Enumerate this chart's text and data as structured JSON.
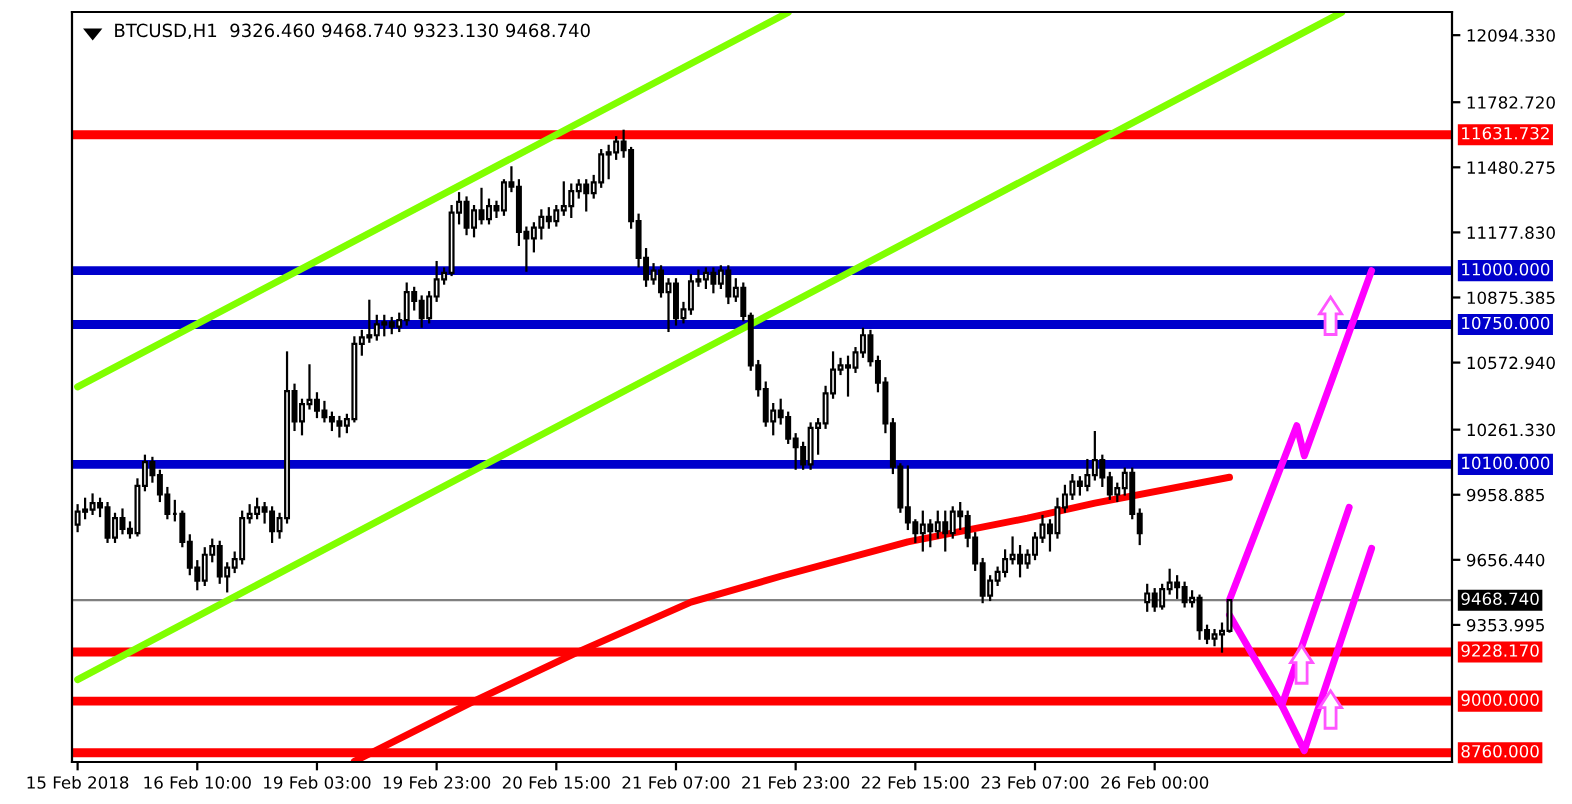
{
  "chart_data": {
    "type": "candlestick",
    "title": "BTCUSD,H1  9326.460 9468.740 9323.130 9468.740",
    "categories": [
      "15 Feb 2018",
      null,
      null,
      null,
      null,
      null,
      null,
      null,
      null,
      null,
      null,
      null,
      null,
      null,
      null,
      null,
      "16 Feb 10:00",
      null,
      null,
      null,
      null,
      null,
      null,
      null,
      null,
      null,
      null,
      null,
      null,
      null,
      null,
      null,
      "19 Feb 03:00",
      null,
      null,
      null,
      null,
      null,
      null,
      null,
      null,
      null,
      null,
      null,
      null,
      null,
      null,
      null,
      "19 Feb 23:00",
      null,
      null,
      null,
      null,
      null,
      null,
      null,
      null,
      null,
      null,
      null,
      null,
      null,
      null,
      null,
      "20 Feb 15:00",
      null,
      null,
      null,
      null,
      null,
      null,
      null,
      null,
      null,
      null,
      null,
      null,
      null,
      null,
      null,
      "21 Feb 07:00",
      null,
      null,
      null,
      null,
      null,
      null,
      null,
      null,
      null,
      null,
      null,
      null,
      null,
      null,
      null,
      "21 Feb 23:00",
      null,
      null,
      null,
      null,
      null,
      null,
      null,
      null,
      null,
      null,
      null,
      null,
      null,
      null,
      null,
      "22 Feb 15:00",
      null,
      null,
      null,
      null,
      null,
      null,
      null,
      null,
      null,
      null,
      null,
      null,
      null,
      null,
      null,
      "23 Feb 07:00",
      null,
      null,
      null,
      null,
      null,
      null,
      null,
      null,
      null,
      null,
      null,
      null,
      null,
      null,
      null,
      "26 Feb 00:00",
      null,
      null,
      null,
      null,
      null,
      null,
      null,
      null,
      null,
      null,
      null,
      null,
      null,
      null,
      null,
      null,
      null,
      null,
      null,
      null,
      null,
      null,
      null,
      null,
      null,
      null,
      null,
      null,
      null,
      null,
      null,
      null,
      null,
      null,
      null,
      null,
      null,
      null,
      null
    ],
    "ohlc": [
      [
        9820,
        9910,
        9790,
        9880
      ],
      [
        9880,
        9940,
        9850,
        9890
      ],
      [
        9890,
        9960,
        9870,
        9920
      ],
      [
        9920,
        9940,
        9860,
        9900
      ],
      [
        9900,
        9920,
        9740,
        9760
      ],
      [
        9760,
        9870,
        9740,
        9850
      ],
      [
        9850,
        9890,
        9780,
        9800
      ],
      [
        9800,
        9830,
        9760,
        9780
      ],
      [
        9780,
        10030,
        9770,
        10000
      ],
      [
        10000,
        10140,
        9980,
        10110
      ],
      [
        10110,
        10130,
        10020,
        10050
      ],
      [
        10050,
        10070,
        9930,
        9960
      ],
      [
        9960,
        9990,
        9850,
        9870
      ],
      [
        9870,
        9930,
        9840,
        9870
      ],
      [
        9870,
        9880,
        9720,
        9740
      ],
      [
        9740,
        9770,
        9590,
        9620
      ],
      [
        9620,
        9650,
        9520,
        9560
      ],
      [
        9560,
        9710,
        9540,
        9680
      ],
      [
        9680,
        9750,
        9650,
        9720
      ],
      [
        9720,
        9740,
        9550,
        9580
      ],
      [
        9580,
        9640,
        9510,
        9620
      ],
      [
        9620,
        9690,
        9600,
        9660
      ],
      [
        9660,
        9880,
        9640,
        9850
      ],
      [
        9850,
        9910,
        9830,
        9870
      ],
      [
        9870,
        9940,
        9850,
        9900
      ],
      [
        9900,
        9920,
        9830,
        9880
      ],
      [
        9880,
        9900,
        9740,
        9790
      ],
      [
        9790,
        9870,
        9760,
        9850
      ],
      [
        9850,
        10620,
        9830,
        10440
      ],
      [
        10440,
        10470,
        10260,
        10300
      ],
      [
        10300,
        10400,
        10240,
        10380
      ],
      [
        10380,
        10560,
        10360,
        10400
      ],
      [
        10400,
        10430,
        10320,
        10350
      ],
      [
        10350,
        10390,
        10300,
        10320
      ],
      [
        10320,
        10340,
        10260,
        10300
      ],
      [
        10300,
        10320,
        10230,
        10280
      ],
      [
        10280,
        10330,
        10250,
        10310
      ],
      [
        10310,
        10690,
        10300,
        10660
      ],
      [
        10660,
        10720,
        10610,
        10690
      ],
      [
        10690,
        10860,
        10670,
        10700
      ],
      [
        10700,
        10790,
        10680,
        10750
      ],
      [
        10750,
        10790,
        10700,
        10760
      ],
      [
        10760,
        10780,
        10710,
        10740
      ],
      [
        10740,
        10800,
        10720,
        10770
      ],
      [
        10770,
        10940,
        10750,
        10900
      ],
      [
        10900,
        10920,
        10820,
        10860
      ],
      [
        10860,
        10880,
        10740,
        10780
      ],
      [
        10780,
        10900,
        10760,
        10880
      ],
      [
        10880,
        11040,
        10860,
        10960
      ],
      [
        10960,
        11010,
        10940,
        10990
      ],
      [
        10990,
        11300,
        10980,
        11270
      ],
      [
        11270,
        11360,
        11220,
        11320
      ],
      [
        11320,
        11340,
        11170,
        11200
      ],
      [
        11200,
        11300,
        11160,
        11280
      ],
      [
        11280,
        11380,
        11220,
        11240
      ],
      [
        11240,
        11330,
        11220,
        11300
      ],
      [
        11300,
        11320,
        11250,
        11280
      ],
      [
        11280,
        11420,
        11260,
        11410
      ],
      [
        11410,
        11480,
        11370,
        11390
      ],
      [
        11390,
        11420,
        11120,
        11180
      ],
      [
        11180,
        11200,
        11000,
        11150
      ],
      [
        11150,
        11220,
        11090,
        11200
      ],
      [
        11200,
        11280,
        11150,
        11250
      ],
      [
        11250,
        11290,
        11200,
        11230
      ],
      [
        11230,
        11300,
        11210,
        11280
      ],
      [
        11280,
        11410,
        11260,
        11300
      ],
      [
        11300,
        11400,
        11250,
        11370
      ],
      [
        11370,
        11420,
        11340,
        11400
      ],
      [
        11400,
        11420,
        11280,
        11360
      ],
      [
        11360,
        11440,
        11340,
        11410
      ],
      [
        11410,
        11560,
        11390,
        11540
      ],
      [
        11540,
        11580,
        11430,
        11550
      ],
      [
        11550,
        11620,
        11520,
        11600
      ],
      [
        11600,
        11650,
        11530,
        11560
      ],
      [
        11560,
        11570,
        11200,
        11230
      ],
      [
        11230,
        11260,
        11020,
        11060
      ],
      [
        11060,
        11100,
        10930,
        10960
      ],
      [
        10960,
        11030,
        10940,
        11000
      ],
      [
        11000,
        11020,
        10880,
        10900
      ],
      [
        10900,
        10960,
        10720,
        10940
      ],
      [
        10940,
        10960,
        10750,
        10780
      ],
      [
        10780,
        10850,
        10760,
        10820
      ],
      [
        10820,
        10980,
        10800,
        10950
      ],
      [
        10950,
        11000,
        10930,
        10960
      ],
      [
        10960,
        11010,
        10920,
        10990
      ],
      [
        10990,
        11010,
        10900,
        10940
      ],
      [
        10940,
        11020,
        10920,
        11000
      ],
      [
        11000,
        11020,
        10850,
        10880
      ],
      [
        10880,
        10960,
        10860,
        10920
      ],
      [
        10920,
        10940,
        10770,
        10790
      ],
      [
        10790,
        10800,
        10540,
        10560
      ],
      [
        10560,
        10580,
        10420,
        10450
      ],
      [
        10450,
        10480,
        10280,
        10300
      ],
      [
        10300,
        10380,
        10240,
        10350
      ],
      [
        10350,
        10400,
        10290,
        10320
      ],
      [
        10320,
        10340,
        10200,
        10220
      ],
      [
        10220,
        10240,
        10080,
        10180
      ],
      [
        10180,
        10200,
        10080,
        10100
      ],
      [
        10100,
        10290,
        10080,
        10270
      ],
      [
        10270,
        10310,
        10150,
        10290
      ],
      [
        10290,
        10460,
        10270,
        10430
      ],
      [
        10430,
        10620,
        10410,
        10540
      ],
      [
        10540,
        10590,
        10520,
        10560
      ],
      [
        10560,
        10600,
        10420,
        10550
      ],
      [
        10550,
        10640,
        10530,
        10620
      ],
      [
        10620,
        10730,
        10600,
        10700
      ],
      [
        10700,
        10720,
        10560,
        10580
      ],
      [
        10580,
        10600,
        10440,
        10480
      ],
      [
        10480,
        10500,
        10250,
        10290
      ],
      [
        10290,
        10310,
        10060,
        10090
      ],
      [
        10090,
        10100,
        9880,
        9900
      ],
      [
        9900,
        10090,
        9800,
        9830
      ],
      [
        9830,
        9840,
        9740,
        9780
      ],
      [
        9780,
        9880,
        9700,
        9820
      ],
      [
        9820,
        9840,
        9720,
        9790
      ],
      [
        9790,
        9880,
        9760,
        9830
      ],
      [
        9830,
        9880,
        9700,
        9780
      ],
      [
        9780,
        9900,
        9760,
        9880
      ],
      [
        9880,
        9920,
        9800,
        9860
      ],
      [
        9860,
        9880,
        9720,
        9760
      ],
      [
        9760,
        9780,
        9610,
        9640
      ],
      [
        9640,
        9660,
        9460,
        9490
      ],
      [
        9490,
        9580,
        9470,
        9560
      ],
      [
        9560,
        9620,
        9540,
        9600
      ],
      [
        9600,
        9700,
        9580,
        9660
      ],
      [
        9660,
        9760,
        9640,
        9680
      ],
      [
        9680,
        9720,
        9580,
        9640
      ],
      [
        9640,
        9700,
        9620,
        9680
      ],
      [
        9680,
        9780,
        9660,
        9760
      ],
      [
        9760,
        9860,
        9740,
        9820
      ],
      [
        9820,
        9840,
        9700,
        9780
      ],
      [
        9780,
        9940,
        9760,
        9900
      ],
      [
        9900,
        10000,
        9880,
        9960
      ],
      [
        9960,
        10050,
        9940,
        10020
      ],
      [
        10020,
        10040,
        9960,
        10000
      ],
      [
        10000,
        10120,
        9980,
        10050
      ],
      [
        10050,
        10250,
        10030,
        10120
      ],
      [
        10120,
        10140,
        10000,
        10040
      ],
      [
        10040,
        10060,
        9940,
        9960
      ],
      [
        9960,
        10010,
        9930,
        9990
      ],
      [
        9990,
        10080,
        9960,
        10060
      ],
      [
        10060,
        10080,
        9850,
        9870
      ],
      [
        9870,
        9890,
        9730,
        9780
      ],
      [
        9460,
        9540,
        9420,
        9500
      ],
      [
        9500,
        9520,
        9420,
        9440
      ],
      [
        9440,
        9540,
        9430,
        9520
      ],
      [
        9520,
        9610,
        9500,
        9550
      ],
      [
        9550,
        9580,
        9480,
        9530
      ],
      [
        9530,
        9550,
        9440,
        9460
      ],
      [
        9460,
        9510,
        9440,
        9480
      ],
      [
        9480,
        9490,
        9290,
        9330
      ],
      [
        9330,
        9350,
        9270,
        9290
      ],
      [
        9290,
        9330,
        9260,
        9310
      ],
      [
        9310,
        9360,
        9230,
        9326.46
      ],
      [
        9326.46,
        9468.74,
        9323.13,
        9468.74
      ],
      null,
      null,
      null,
      null,
      null,
      null,
      null,
      null,
      null,
      null,
      null,
      null,
      null,
      null,
      null,
      null,
      null,
      null,
      null,
      null,
      null,
      null,
      null,
      null,
      null,
      null,
      null,
      null,
      null
    ],
    "series": [
      {
        "type": "line",
        "color": "#80ff00",
        "values": [
          10460,
          null,
          null,
          null,
          null,
          null,
          null,
          null,
          null,
          null,
          null,
          null,
          null,
          null,
          null,
          null,
          null,
          null,
          null,
          null,
          null,
          null,
          null,
          null,
          null,
          null,
          null,
          null,
          null,
          null,
          null,
          null,
          null,
          null,
          null,
          null,
          null,
          null,
          null,
          null,
          null,
          null,
          null,
          null,
          null,
          null,
          null,
          null,
          null,
          null,
          null,
          null,
          null,
          null,
          null,
          null,
          null,
          null,
          null,
          null,
          null,
          null,
          null,
          null,
          null,
          null,
          null,
          null,
          null,
          null,
          null,
          null,
          null,
          null,
          null,
          null,
          null,
          null,
          null,
          null,
          null,
          null,
          null,
          null,
          null,
          null,
          null,
          null,
          null,
          null,
          null,
          null,
          null,
          null,
          null,
          12200,
          null,
          null,
          null,
          null,
          null,
          null,
          null,
          null,
          null,
          null,
          null,
          null,
          null,
          null,
          null,
          null,
          null,
          null,
          null,
          null,
          null,
          null,
          null,
          null,
          null,
          null,
          null,
          null,
          null,
          null,
          null,
          null,
          null,
          null,
          null,
          null,
          null,
          null,
          null,
          null,
          null,
          null,
          null,
          null,
          null,
          null,
          null,
          null,
          null,
          null,
          null,
          null,
          null,
          null,
          null,
          null,
          null,
          null,
          null,
          null,
          null,
          null,
          null,
          null,
          null,
          null,
          null,
          null,
          null,
          null,
          null,
          null,
          null,
          null,
          null,
          null,
          null,
          null,
          null,
          null,
          null,
          null,
          null,
          null,
          null,
          null,
          null,
          null
        ]
      },
      {
        "type": "line",
        "color": "#80ff00",
        "values": [
          9100,
          null,
          null,
          null,
          null,
          null,
          null,
          null,
          null,
          null,
          null,
          null,
          null,
          null,
          null,
          null,
          null,
          null,
          null,
          null,
          null,
          null,
          null,
          null,
          null,
          null,
          null,
          null,
          null,
          null,
          null,
          null,
          null,
          null,
          null,
          null,
          null,
          null,
          null,
          null,
          null,
          null,
          null,
          null,
          null,
          null,
          null,
          null,
          null,
          null,
          null,
          null,
          null,
          null,
          null,
          null,
          null,
          null,
          null,
          null,
          null,
          null,
          null,
          null,
          null,
          null,
          null,
          null,
          null,
          null,
          null,
          null,
          null,
          null,
          null,
          null,
          null,
          null,
          null,
          null,
          null,
          null,
          null,
          null,
          null,
          null,
          null,
          null,
          null,
          null,
          null,
          null,
          null,
          null,
          null,
          null,
          null,
          null,
          null,
          null,
          null,
          null,
          null,
          null,
          null,
          null,
          null,
          null,
          null,
          null,
          null,
          null,
          null,
          null,
          null,
          null,
          null,
          null,
          null,
          null,
          null,
          null,
          null,
          null,
          null,
          null,
          null,
          null,
          null,
          null,
          null,
          null,
          null,
          null,
          null,
          null,
          null,
          null,
          null,
          null,
          null,
          null,
          null,
          null,
          null,
          null,
          null,
          null,
          null,
          null,
          null,
          null,
          null,
          null,
          null,
          null,
          null,
          null,
          null,
          null,
          null,
          null,
          null,
          null,
          null,
          null,
          null,
          null,
          null,
          12200,
          null,
          null,
          null,
          null,
          null,
          null,
          null,
          null,
          null,
          null,
          null,
          null,
          null,
          null
        ]
      },
      {
        "type": "line",
        "color": "#ff0000",
        "values": [
          null,
          null,
          null,
          null,
          null,
          null,
          null,
          null,
          null,
          null,
          null,
          null,
          null,
          null,
          null,
          null,
          null,
          null,
          null,
          null,
          null,
          null,
          null,
          null,
          null,
          null,
          null,
          null,
          null,
          null,
          null,
          null,
          null,
          null,
          null,
          null,
          null,
          8720,
          null,
          null,
          null,
          null,
          null,
          null,
          null,
          null,
          null,
          null,
          null,
          null,
          null,
          null,
          null,
          9000,
          null,
          null,
          null,
          null,
          null,
          null,
          null,
          null,
          null,
          null,
          null,
          null,
          null,
          9230,
          null,
          null,
          null,
          null,
          null,
          null,
          null,
          null,
          null,
          null,
          null,
          null,
          null,
          null,
          9460,
          null,
          null,
          null,
          null,
          null,
          null,
          null,
          null,
          null,
          null,
          null,
          9580,
          null,
          null,
          null,
          null,
          null,
          null,
          null,
          null,
          null,
          null,
          null,
          null,
          null,
          null,
          null,
          null,
          9740,
          null,
          null,
          null,
          null,
          null,
          null,
          null,
          null,
          null,
          null,
          null,
          null,
          null,
          null,
          null,
          9850,
          null,
          null,
          null,
          null,
          null,
          null,
          null,
          null,
          9920,
          null,
          null,
          null,
          null,
          null,
          null,
          null,
          null,
          null,
          null,
          null,
          null,
          null,
          null,
          null,
          null,
          null,
          10040,
          null,
          null,
          null,
          null,
          null,
          null,
          null,
          null,
          null,
          null,
          null,
          null,
          null,
          null,
          null,
          null,
          null,
          null,
          null,
          null,
          null,
          null,
          null,
          null,
          null,
          null,
          null,
          null,
          null
        ]
      },
      {
        "type": "line",
        "color": "#ff00ff",
        "values": [
          null,
          null,
          null,
          null,
          null,
          null,
          null,
          null,
          null,
          null,
          null,
          null,
          null,
          null,
          null,
          null,
          null,
          null,
          null,
          null,
          null,
          null,
          null,
          null,
          null,
          null,
          null,
          null,
          null,
          null,
          null,
          null,
          null,
          null,
          null,
          null,
          null,
          null,
          null,
          null,
          null,
          null,
          null,
          null,
          null,
          null,
          null,
          null,
          null,
          null,
          null,
          null,
          null,
          null,
          null,
          null,
          null,
          null,
          null,
          null,
          null,
          null,
          null,
          null,
          null,
          null,
          null,
          null,
          null,
          null,
          null,
          null,
          null,
          null,
          null,
          null,
          null,
          null,
          null,
          null,
          null,
          null,
          null,
          null,
          null,
          null,
          null,
          null,
          null,
          null,
          null,
          null,
          null,
          null,
          null,
          null,
          null,
          null,
          null,
          null,
          null,
          null,
          null,
          null,
          null,
          null,
          null,
          null,
          null,
          null,
          null,
          null,
          null,
          null,
          null,
          null,
          null,
          null,
          null,
          null,
          null,
          null,
          null,
          null,
          null,
          null,
          null,
          null,
          null,
          null,
          null,
          null,
          null,
          null,
          null,
          null,
          null,
          null,
          null,
          null,
          null,
          null,
          null,
          null,
          null,
          null,
          null,
          null,
          null,
          null,
          null,
          null,
          null,
          null,
          9470,
          null,
          null,
          null,
          null,
          null,
          null,
          null,
          null,
          10280,
          10140,
          null,
          null,
          null,
          null,
          null,
          null,
          null,
          null,
          11000,
          null,
          null,
          null,
          null,
          null,
          null,
          null,
          null,
          null,
          null
        ]
      },
      {
        "type": "line",
        "color": "#ff00ff",
        "values": [
          null,
          null,
          null,
          null,
          null,
          null,
          null,
          null,
          null,
          null,
          null,
          null,
          null,
          null,
          null,
          null,
          null,
          null,
          null,
          null,
          null,
          null,
          null,
          null,
          null,
          null,
          null,
          null,
          null,
          null,
          null,
          null,
          null,
          null,
          null,
          null,
          null,
          null,
          null,
          null,
          null,
          null,
          null,
          null,
          null,
          null,
          null,
          null,
          null,
          null,
          null,
          null,
          null,
          null,
          null,
          null,
          null,
          null,
          null,
          null,
          null,
          null,
          null,
          null,
          null,
          null,
          null,
          null,
          null,
          null,
          null,
          null,
          null,
          null,
          null,
          null,
          null,
          null,
          null,
          null,
          null,
          null,
          null,
          null,
          null,
          null,
          null,
          null,
          null,
          null,
          null,
          null,
          null,
          null,
          null,
          null,
          null,
          null,
          null,
          null,
          null,
          null,
          null,
          null,
          null,
          null,
          null,
          null,
          null,
          null,
          null,
          null,
          null,
          null,
          null,
          null,
          null,
          null,
          null,
          null,
          null,
          null,
          null,
          null,
          null,
          null,
          null,
          null,
          null,
          null,
          null,
          null,
          null,
          null,
          null,
          null,
          null,
          null,
          null,
          null,
          null,
          null,
          null,
          null,
          null,
          null,
          null,
          null,
          null,
          null,
          null,
          null,
          null,
          null,
          9400,
          null,
          null,
          null,
          null,
          null,
          null,
          8980,
          null,
          null,
          null,
          null,
          null,
          null,
          null,
          null,
          9900,
          null,
          null,
          null,
          null,
          null,
          null,
          null,
          null,
          null,
          null,
          null,
          null,
          null
        ]
      },
      {
        "type": "line",
        "color": "#ff00ff",
        "values": [
          null,
          null,
          null,
          null,
          null,
          null,
          null,
          null,
          null,
          null,
          null,
          null,
          null,
          null,
          null,
          null,
          null,
          null,
          null,
          null,
          null,
          null,
          null,
          null,
          null,
          null,
          null,
          null,
          null,
          null,
          null,
          null,
          null,
          null,
          null,
          null,
          null,
          null,
          null,
          null,
          null,
          null,
          null,
          null,
          null,
          null,
          null,
          null,
          null,
          null,
          null,
          null,
          null,
          null,
          null,
          null,
          null,
          null,
          null,
          null,
          null,
          null,
          null,
          null,
          null,
          null,
          null,
          null,
          null,
          null,
          null,
          null,
          null,
          null,
          null,
          null,
          null,
          null,
          null,
          null,
          null,
          null,
          null,
          null,
          null,
          null,
          null,
          null,
          null,
          null,
          null,
          null,
          null,
          null,
          null,
          null,
          null,
          null,
          null,
          null,
          null,
          null,
          null,
          null,
          null,
          null,
          null,
          null,
          null,
          null,
          null,
          null,
          null,
          null,
          null,
          null,
          null,
          null,
          null,
          null,
          null,
          null,
          null,
          null,
          null,
          null,
          null,
          null,
          null,
          null,
          null,
          null,
          null,
          null,
          null,
          null,
          null,
          null,
          null,
          null,
          null,
          null,
          null,
          null,
          null,
          null,
          null,
          null,
          null,
          null,
          null,
          null,
          null,
          null,
          null,
          null,
          null,
          null,
          null,
          null,
          null,
          8980,
          null,
          null,
          8770,
          null,
          null,
          null,
          null,
          null,
          null,
          null,
          null,
          9710,
          null,
          null,
          null,
          null,
          null,
          null,
          null,
          null,
          null,
          null
        ]
      }
    ],
    "ref_lines": [
      {
        "axis": "y",
        "value": 11631.732,
        "label": "11631.732",
        "color": "#ff0000"
      },
      {
        "axis": "y",
        "value": 11000,
        "label": "11000.000",
        "color": "#0000cc"
      },
      {
        "axis": "y",
        "value": 10750,
        "label": "10750.000",
        "color": "#0000cc"
      },
      {
        "axis": "y",
        "value": 10100,
        "label": "10100.000",
        "color": "#0000cc"
      },
      {
        "axis": "y",
        "value": 9468.74,
        "label": "9468.740",
        "color": "#808080"
      },
      {
        "axis": "y",
        "value": 9228.17,
        "label": "9228.170",
        "color": "#ff0000"
      },
      {
        "axis": "y",
        "value": 9000,
        "label": "9000.000",
        "color": "#ff0000"
      },
      {
        "axis": "y",
        "value": 8760,
        "label": "8760.000",
        "color": "#ff0000"
      }
    ],
    "ylim": [
      8717,
      12202
    ],
    "yticks": [
      {
        "value": 12094.33,
        "label": "12094.330"
      },
      {
        "value": 11782.72,
        "label": "11782.720"
      },
      {
        "value": 11480.275,
        "label": "11480.275"
      },
      {
        "value": 11177.83,
        "label": "11177.830"
      },
      {
        "value": 10875.385,
        "label": "10875.385"
      },
      {
        "value": 10572.94,
        "label": "10572.940"
      },
      {
        "value": 10261.33,
        "label": "10261.330"
      },
      {
        "value": 9958.885,
        "label": "9958.885"
      },
      {
        "value": 9656.44,
        "label": "9656.440"
      },
      {
        "value": 9353.995,
        "label": "9353.995"
      }
    ],
    "grid": false
  }
}
